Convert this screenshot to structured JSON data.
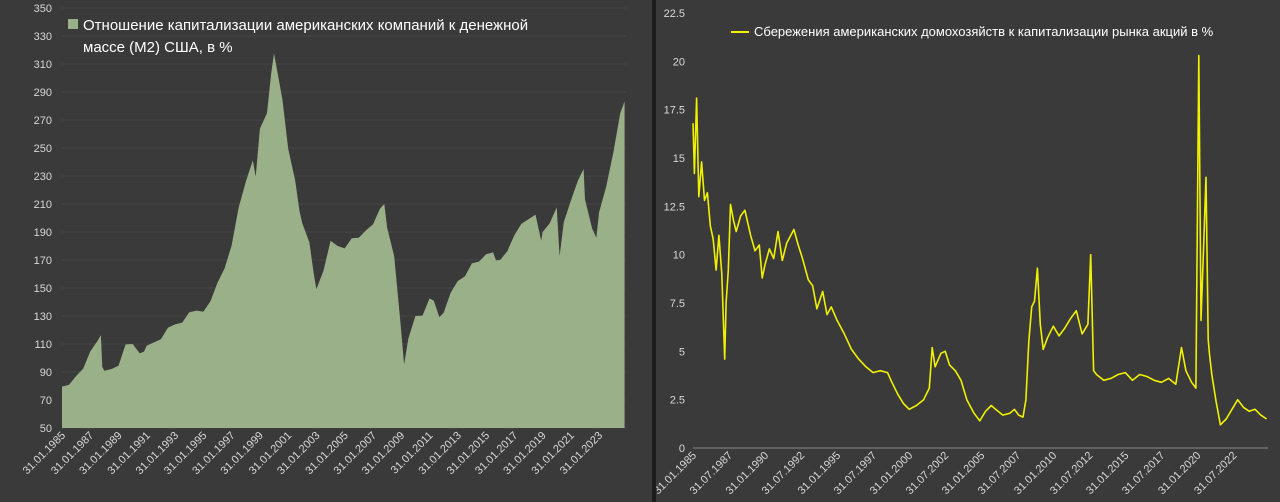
{
  "chart_data": [
    {
      "type": "area",
      "legend": {
        "lines": [
          "Отношение капитализации американских компаний к денежной",
          "массе (M2) США, в %"
        ],
        "position": "top-left"
      },
      "colors": {
        "fill": "#9ab089",
        "background": "#3a3a3a",
        "text": "#d8d8d8"
      },
      "ylim": [
        50,
        350
      ],
      "yticks": [
        50,
        70,
        90,
        110,
        130,
        150,
        170,
        190,
        210,
        230,
        250,
        270,
        290,
        310,
        330,
        350
      ],
      "xlim": [
        1985.0,
        2024.9
      ],
      "xtick_labels": [
        "31.01.1985",
        "31.01.1987",
        "31.01.1989",
        "31.01.1991",
        "31.01.1993",
        "31.01.1995",
        "31.01.1997",
        "31.01.1999",
        "31.01.2001",
        "31.01.2003",
        "31.01.2005",
        "31.01.2007",
        "31.01.2009",
        "31.01.2011",
        "31.01.2013",
        "31.01.2015",
        "31.01.2017",
        "31.01.2019",
        "31.01.2021",
        "31.01.2023"
      ],
      "series": [
        {
          "x": [
            1985.0,
            1985.5,
            1986.0,
            1986.5,
            1987.0,
            1987.5,
            1987.75,
            1987.85,
            1988.0,
            1988.5,
            1989.0,
            1989.5,
            1990.0,
            1990.5,
            1990.8,
            1991.0,
            1991.5,
            1992.0,
            1992.5,
            1993.0,
            1993.5,
            1994.0,
            1994.5,
            1995.0,
            1995.5,
            1996.0,
            1996.5,
            1997.0,
            1997.5,
            1998.0,
            1998.5,
            1998.7,
            1999.0,
            1999.5,
            1999.8,
            2000.0,
            2000.3,
            2000.6,
            2001.0,
            2001.5,
            2001.8,
            2002.0,
            2002.5,
            2002.8,
            2003.0,
            2003.5,
            2004.0,
            2004.5,
            2005.0,
            2005.5,
            2006.0,
            2006.5,
            2007.0,
            2007.5,
            2007.8,
            2008.0,
            2008.5,
            2008.8,
            2009.0,
            2009.2,
            2009.5,
            2010.0,
            2010.5,
            2011.0,
            2011.3,
            2011.7,
            2012.0,
            2012.5,
            2013.0,
            2013.5,
            2014.0,
            2014.5,
            2015.0,
            2015.5,
            2015.7,
            2016.0,
            2016.5,
            2017.0,
            2017.5,
            2018.0,
            2018.5,
            2018.9,
            2019.0,
            2019.5,
            2020.0,
            2020.2,
            2020.5,
            2021.0,
            2021.5,
            2021.9,
            2022.0,
            2022.5,
            2022.8,
            2023.0,
            2023.5,
            2024.0,
            2024.5,
            2024.8
          ],
          "values": [
            77,
            80,
            88,
            95,
            103,
            112,
            118,
            91,
            90,
            93,
            97,
            108,
            110,
            105,
            102,
            108,
            112,
            116,
            120,
            124,
            127,
            130,
            133,
            134,
            143,
            152,
            164,
            182,
            205,
            225,
            242,
            232,
            262,
            275,
            305,
            315,
            300,
            285,
            252,
            225,
            205,
            198,
            180,
            160,
            150,
            165,
            182,
            180,
            180,
            183,
            185,
            192,
            198,
            205,
            210,
            195,
            170,
            140,
            120,
            98,
            112,
            130,
            132,
            140,
            140,
            130,
            135,
            145,
            155,
            160,
            165,
            168,
            175,
            178,
            168,
            170,
            178,
            185,
            195,
            200,
            205,
            182,
            190,
            198,
            205,
            172,
            198,
            215,
            225,
            235,
            215,
            190,
            185,
            205,
            225,
            245,
            275,
            285
          ]
        }
      ]
    },
    {
      "type": "line",
      "legend": {
        "lines": [
          "Сбережения американских домохозяйств к капитализации рынка акций в %"
        ],
        "position": "top"
      },
      "colors": {
        "line": "#f0f000",
        "background": "#3a3a3a",
        "text": "#d8d8d8"
      },
      "ylim": [
        0,
        22.5
      ],
      "yticks": [
        0,
        2.5,
        5,
        7.5,
        10,
        12.5,
        15,
        17.5,
        20,
        22.5
      ],
      "ytick_labels": [
        "0",
        "2.5",
        "5",
        "7.5",
        "10",
        "12.5",
        "15",
        "17.5",
        "20",
        "22.5"
      ],
      "xlim": [
        1985.0,
        2024.9
      ],
      "xtick_labels": [
        "31.01.1985",
        "31.07.1987",
        "31.01.1990",
        "31.07.1992",
        "31.01.1995",
        "31.07.1997",
        "31.01.2000",
        "31.07.2002",
        "31.01.2005",
        "31.07.2007",
        "31.01.2010",
        "31.07.2012",
        "31.01.2015",
        "31.07.2017",
        "31.01.2020",
        "31.07.2022"
      ],
      "series": [
        {
          "x": [
            1985.0,
            1985.1,
            1985.25,
            1985.4,
            1985.6,
            1985.8,
            1986.0,
            1986.2,
            1986.4,
            1986.6,
            1986.8,
            1987.0,
            1987.2,
            1987.3,
            1987.45,
            1987.6,
            1987.8,
            1988.0,
            1988.3,
            1988.6,
            1989.0,
            1989.3,
            1989.6,
            1989.8,
            1990.0,
            1990.3,
            1990.6,
            1990.9,
            1991.2,
            1991.5,
            1992.0,
            1992.3,
            1992.6,
            1993.0,
            1993.3,
            1993.6,
            1994.0,
            1994.3,
            1994.6,
            1995.0,
            1995.5,
            1996.0,
            1996.5,
            1997.0,
            1997.5,
            1998.0,
            1998.5,
            1998.8,
            1999.2,
            1999.6,
            2000.0,
            2000.5,
            2001.0,
            2001.4,
            2001.6,
            2001.8,
            2002.2,
            2002.5,
            2002.8,
            2003.2,
            2003.6,
            2004.0,
            2004.5,
            2004.9,
            2005.3,
            2005.7,
            2006.0,
            2006.5,
            2007.0,
            2007.3,
            2007.6,
            2007.9,
            2008.1,
            2008.3,
            2008.5,
            2008.7,
            2008.9,
            2009.1,
            2009.3,
            2009.6,
            2010.0,
            2010.4,
            2010.8,
            2011.2,
            2011.6,
            2012.0,
            2012.4,
            2012.6,
            2012.8,
            2013.0,
            2013.5,
            2014.0,
            2014.5,
            2015.0,
            2015.5,
            2016.0,
            2016.5,
            2017.0,
            2017.5,
            2018.0,
            2018.5,
            2018.9,
            2019.2,
            2019.6,
            2019.9,
            2020.1,
            2020.25,
            2020.4,
            2020.6,
            2020.75,
            2020.85,
            2021.0,
            2021.3,
            2021.6,
            2022.0,
            2022.4,
            2022.8,
            2023.2,
            2023.6,
            2024.0,
            2024.4,
            2024.8
          ],
          "values": [
            16.8,
            14.2,
            18.1,
            13.0,
            14.8,
            12.8,
            13.2,
            11.5,
            10.8,
            9.2,
            11.0,
            9.0,
            4.6,
            7.5,
            9.2,
            12.6,
            11.8,
            11.2,
            12.0,
            12.3,
            11.0,
            10.2,
            10.5,
            8.8,
            9.5,
            10.3,
            9.8,
            11.2,
            9.7,
            10.6,
            11.3,
            10.5,
            9.8,
            8.7,
            8.4,
            7.2,
            8.1,
            6.9,
            7.3,
            6.6,
            5.9,
            5.1,
            4.6,
            4.2,
            3.9,
            4.0,
            3.9,
            3.4,
            2.8,
            2.3,
            2.0,
            2.2,
            2.5,
            3.1,
            5.2,
            4.2,
            4.9,
            5.0,
            4.3,
            4.0,
            3.5,
            2.5,
            1.8,
            1.4,
            1.9,
            2.2,
            2.0,
            1.7,
            1.8,
            2.0,
            1.7,
            1.6,
            2.5,
            5.5,
            7.3,
            7.6,
            9.3,
            6.4,
            5.1,
            5.7,
            6.3,
            5.8,
            6.2,
            6.7,
            7.1,
            5.9,
            6.4,
            10.0,
            4.0,
            3.8,
            3.5,
            3.6,
            3.8,
            3.9,
            3.5,
            3.8,
            3.7,
            3.5,
            3.4,
            3.6,
            3.3,
            5.2,
            4.0,
            3.4,
            3.1,
            20.3,
            6.6,
            9.8,
            14.0,
            5.6,
            4.8,
            3.8,
            2.4,
            1.2,
            1.5,
            2.0,
            2.5,
            2.1,
            1.9,
            2.0,
            1.7,
            1.5
          ]
        }
      ]
    }
  ]
}
